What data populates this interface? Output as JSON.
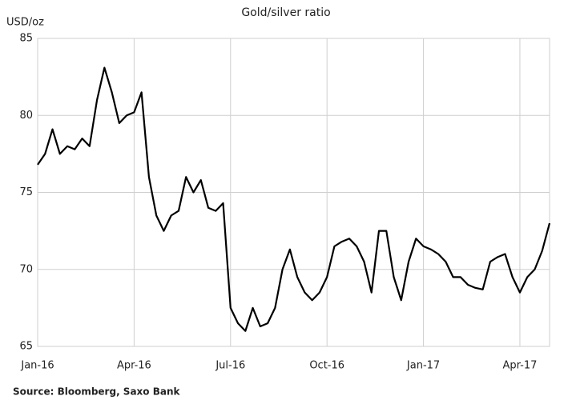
{
  "chart_data": {
    "type": "line",
    "title": "Gold/silver ratio",
    "y_label": "USD/oz",
    "source": "Source: Bloomberg, Saxo Bank",
    "categories": [
      "Jan-16",
      null,
      null,
      null,
      null,
      null,
      null,
      null,
      null,
      null,
      null,
      null,
      null,
      "Apr-16",
      null,
      null,
      null,
      null,
      null,
      null,
      null,
      null,
      null,
      null,
      null,
      null,
      "Jul-16",
      null,
      null,
      null,
      null,
      null,
      null,
      null,
      null,
      null,
      null,
      null,
      null,
      "Oct-16",
      null,
      null,
      null,
      null,
      null,
      null,
      null,
      null,
      null,
      null,
      null,
      null,
      "Jan-17",
      null,
      null,
      null,
      null,
      null,
      null,
      null,
      null,
      null,
      null,
      null,
      null,
      "Apr-17",
      null,
      null,
      null,
      null
    ],
    "series": [
      {
        "name": "Gold/silver ratio",
        "color": "#000000",
        "values": [
          76.8,
          77.5,
          79.1,
          77.5,
          78.0,
          77.8,
          78.5,
          78.0,
          81.0,
          83.1,
          81.5,
          79.5,
          80.0,
          80.2,
          81.5,
          76.0,
          73.5,
          72.5,
          73.5,
          73.8,
          76.0,
          75.0,
          75.8,
          74.0,
          73.8,
          74.3,
          67.5,
          66.5,
          66.0,
          67.5,
          66.3,
          66.5,
          67.5,
          70.0,
          71.3,
          69.5,
          68.5,
          68.0,
          68.5,
          69.5,
          71.5,
          71.8,
          72.0,
          71.5,
          70.5,
          68.5,
          72.5,
          72.5,
          69.5,
          68.0,
          70.5,
          72.0,
          71.5,
          71.3,
          71.0,
          70.5,
          69.5,
          69.5,
          69.0,
          68.8,
          68.7,
          70.5,
          70.8,
          71.0,
          69.5,
          68.5,
          69.5,
          70.0,
          71.2,
          73.0
        ]
      }
    ],
    "ylim": [
      65,
      85
    ],
    "yticks": [
      65,
      70,
      75,
      80,
      85
    ],
    "grid": true
  }
}
